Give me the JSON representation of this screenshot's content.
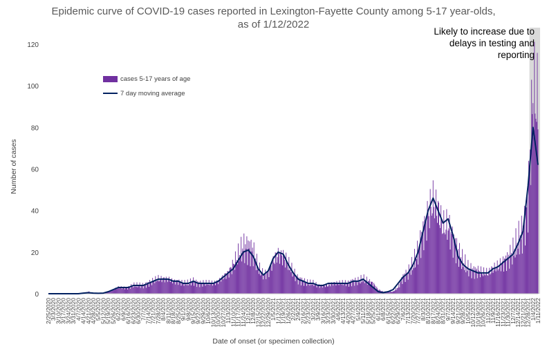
{
  "chart_data": {
    "type": "bar",
    "title_line1": "Epidemic curve of COVID-19 cases reported in Lexington-Fayette County among 5-17 year-olds,",
    "title_line2": "as of 1/12/2022",
    "xlabel": "Date of onset (or specimen collection)",
    "ylabel": "Number of cases",
    "ylim": [
      0,
      120
    ],
    "yticks": [
      0,
      20,
      40,
      60,
      80,
      100,
      120
    ],
    "x_range": [
      "2/25/2020",
      "1/11/2022"
    ],
    "x_tick_labels": [
      "2/25/2020",
      "3/3/2020",
      "3/10/2020",
      "3/17/2020",
      "3/24/2020",
      "3/31/2020",
      "4/7/2020",
      "4/14/2020",
      "4/21/2020",
      "4/28/2020",
      "5/5/2020",
      "5/12/2020",
      "5/19/2020",
      "5/26/2020",
      "6/2/2020",
      "6/9/2020",
      "6/16/2020",
      "6/23/2020",
      "6/30/2020",
      "7/7/2020",
      "7/14/2020",
      "7/21/2020",
      "7/28/2020",
      "8/4/2020",
      "8/11/2020",
      "8/18/2020",
      "8/25/2020",
      "9/1/2020",
      "9/8/2020",
      "9/15/2020",
      "9/22/2020",
      "9/29/2020",
      "10/6/2020",
      "10/13/2020",
      "10/20/2020",
      "10/27/2020",
      "11/3/2020",
      "11/10/2020",
      "11/17/2020",
      "11/24/2020",
      "12/1/2020",
      "12/8/2020",
      "12/15/2020",
      "12/22/2020",
      "12/29/2020",
      "1/5/2021",
      "1/12/2021",
      "1/19/2021",
      "1/26/2021",
      "2/2/2021",
      "2/9/2021",
      "2/16/2021",
      "2/23/2021",
      "3/2/2021",
      "3/9/2021",
      "3/16/2021",
      "3/23/2021",
      "3/30/2021",
      "4/6/2021",
      "4/13/2021",
      "4/20/2021",
      "4/27/2021",
      "5/4/2021",
      "5/11/2021",
      "5/18/2021",
      "5/25/2021",
      "6/1/2021",
      "6/8/2021",
      "6/15/2021",
      "6/22/2021",
      "6/29/2021",
      "7/6/2021",
      "7/13/2021",
      "7/20/2021",
      "7/27/2021",
      "8/3/2021",
      "8/10/2021",
      "8/17/2021",
      "8/24/2021",
      "8/31/2021",
      "9/7/2021",
      "9/14/2021",
      "9/21/2021",
      "9/28/2021",
      "10/5/2021",
      "10/12/2021",
      "10/19/2021",
      "10/26/2021",
      "11/2/2021",
      "11/9/2021",
      "11/16/2021",
      "11/23/2021",
      "11/30/2021",
      "12/7/2021",
      "12/14/2021",
      "12/21/2021",
      "12/28/2021",
      "1/4/2022",
      "1/11/2022"
    ],
    "series": [
      {
        "name": "cases 5-17 years of age",
        "kind": "bar",
        "color": "#7030a0",
        "weekly_x": [
          "2/25/2020",
          "3/3/2020",
          "3/10/2020",
          "3/17/2020",
          "3/24/2020",
          "3/31/2020",
          "4/7/2020",
          "4/14/2020",
          "4/21/2020",
          "4/28/2020",
          "5/5/2020",
          "5/12/2020",
          "5/19/2020",
          "5/26/2020",
          "6/2/2020",
          "6/9/2020",
          "6/16/2020",
          "6/23/2020",
          "6/30/2020",
          "7/7/2020",
          "7/14/2020",
          "7/21/2020",
          "7/28/2020",
          "8/4/2020",
          "8/11/2020",
          "8/18/2020",
          "8/25/2020",
          "9/1/2020",
          "9/8/2020",
          "9/15/2020",
          "9/22/2020",
          "9/29/2020",
          "10/6/2020",
          "10/13/2020",
          "10/20/2020",
          "10/27/2020",
          "11/3/2020",
          "11/10/2020",
          "11/17/2020",
          "11/24/2020",
          "12/1/2020",
          "12/8/2020",
          "12/15/2020",
          "12/22/2020",
          "12/29/2020",
          "1/5/2021",
          "1/12/2021",
          "1/19/2021",
          "1/26/2021",
          "2/2/2021",
          "2/9/2021",
          "2/16/2021",
          "2/23/2021",
          "3/2/2021",
          "3/9/2021",
          "3/16/2021",
          "3/23/2021",
          "3/30/2021",
          "4/6/2021",
          "4/13/2021",
          "4/20/2021",
          "4/27/2021",
          "5/4/2021",
          "5/11/2021",
          "5/18/2021",
          "5/25/2021",
          "6/1/2021",
          "6/8/2021",
          "6/15/2021",
          "6/22/2021",
          "6/29/2021",
          "7/6/2021",
          "7/13/2021",
          "7/20/2021",
          "7/27/2021",
          "8/3/2021",
          "8/10/2021",
          "8/17/2021",
          "8/24/2021",
          "8/31/2021",
          "9/7/2021",
          "9/14/2021",
          "9/21/2021",
          "9/28/2021",
          "10/5/2021",
          "10/12/2021",
          "10/19/2021",
          "10/26/2021",
          "11/2/2021",
          "11/9/2021",
          "11/16/2021",
          "11/23/2021",
          "11/30/2021",
          "12/7/2021",
          "12/14/2021",
          "12/21/2021",
          "12/28/2021",
          "1/4/2022",
          "1/11/2022"
        ],
        "weekly_typical_daily_values": [
          0,
          0,
          0,
          0,
          0,
          0,
          0,
          0,
          1,
          0,
          0,
          0,
          1,
          2,
          3,
          3,
          3,
          4,
          4,
          4,
          5,
          6,
          7,
          7,
          7,
          6,
          6,
          5,
          5,
          6,
          5,
          5,
          5,
          5,
          6,
          8,
          10,
          14,
          18,
          22,
          22,
          20,
          12,
          9,
          10,
          16,
          19,
          18,
          14,
          10,
          7,
          6,
          5,
          5,
          4,
          4,
          4,
          5,
          5,
          5,
          5,
          6,
          6,
          7,
          6,
          5,
          2,
          1,
          1,
          1,
          3,
          8,
          10,
          14,
          20,
          30,
          38,
          44,
          40,
          32,
          32,
          26,
          20,
          15,
          12,
          11,
          11,
          10,
          10,
          12,
          13,
          15,
          17,
          20,
          25,
          30,
          45,
          95,
          90
        ]
      },
      {
        "name": "7 day moving average",
        "kind": "line",
        "color": "#002060",
        "weekly_x": [
          "2/25/2020",
          "3/3/2020",
          "3/10/2020",
          "3/17/2020",
          "3/24/2020",
          "3/31/2020",
          "4/7/2020",
          "4/14/2020",
          "4/21/2020",
          "4/28/2020",
          "5/5/2020",
          "5/12/2020",
          "5/19/2020",
          "5/26/2020",
          "6/2/2020",
          "6/9/2020",
          "6/16/2020",
          "6/23/2020",
          "6/30/2020",
          "7/7/2020",
          "7/14/2020",
          "7/21/2020",
          "7/28/2020",
          "8/4/2020",
          "8/11/2020",
          "8/18/2020",
          "8/25/2020",
          "9/1/2020",
          "9/8/2020",
          "9/15/2020",
          "9/22/2020",
          "9/29/2020",
          "10/6/2020",
          "10/13/2020",
          "10/20/2020",
          "10/27/2020",
          "11/3/2020",
          "11/10/2020",
          "11/17/2020",
          "11/24/2020",
          "12/1/2020",
          "12/8/2020",
          "12/15/2020",
          "12/22/2020",
          "12/29/2020",
          "1/5/2021",
          "1/12/2021",
          "1/19/2021",
          "1/26/2021",
          "2/2/2021",
          "2/9/2021",
          "2/16/2021",
          "2/23/2021",
          "3/2/2021",
          "3/9/2021",
          "3/16/2021",
          "3/23/2021",
          "3/30/2021",
          "4/6/2021",
          "4/13/2021",
          "4/20/2021",
          "4/27/2021",
          "5/4/2021",
          "5/11/2021",
          "5/18/2021",
          "5/25/2021",
          "6/1/2021",
          "6/8/2021",
          "6/15/2021",
          "6/22/2021",
          "6/29/2021",
          "7/6/2021",
          "7/13/2021",
          "7/20/2021",
          "7/27/2021",
          "8/3/2021",
          "8/10/2021",
          "8/17/2021",
          "8/24/2021",
          "8/31/2021",
          "9/7/2021",
          "9/14/2021",
          "9/21/2021",
          "9/28/2021",
          "10/5/2021",
          "10/12/2021",
          "10/19/2021",
          "10/26/2021",
          "11/2/2021",
          "11/9/2021",
          "11/16/2021",
          "11/23/2021",
          "11/30/2021",
          "12/7/2021",
          "12/14/2021",
          "12/21/2021",
          "12/28/2021",
          "1/4/2022",
          "1/11/2022"
        ],
        "values": [
          0,
          0,
          0,
          0,
          0,
          0,
          0,
          0.3,
          0.5,
          0.3,
          0.2,
          0.3,
          1,
          2,
          3,
          3,
          3,
          4,
          4,
          4,
          5,
          6,
          7,
          7,
          7,
          6,
          6,
          5,
          5,
          6,
          5,
          5,
          5,
          5,
          6,
          8,
          10,
          12,
          16,
          20,
          21,
          18,
          12,
          9,
          11,
          17,
          20,
          19,
          14,
          10,
          7,
          6,
          5,
          5,
          4,
          4,
          5,
          5,
          5,
          5,
          5,
          6,
          6,
          7,
          5,
          3,
          1,
          0.5,
          1,
          2,
          5,
          8,
          10,
          14,
          20,
          30,
          40,
          46,
          40,
          34,
          36,
          28,
          18,
          14,
          12,
          11,
          10,
          10,
          10,
          12,
          13,
          15,
          17,
          19,
          24,
          30,
          52,
          80,
          62
        ]
      }
    ],
    "annotation": {
      "lines": [
        "Likely to increase due to",
        "delays in testing and",
        "reporting"
      ],
      "shaded_from": "12/30/2021",
      "shaded_to": "1/11/2022",
      "shade_color": "#d9d9d9"
    },
    "legend_position": "upper-left",
    "grid": false
  }
}
